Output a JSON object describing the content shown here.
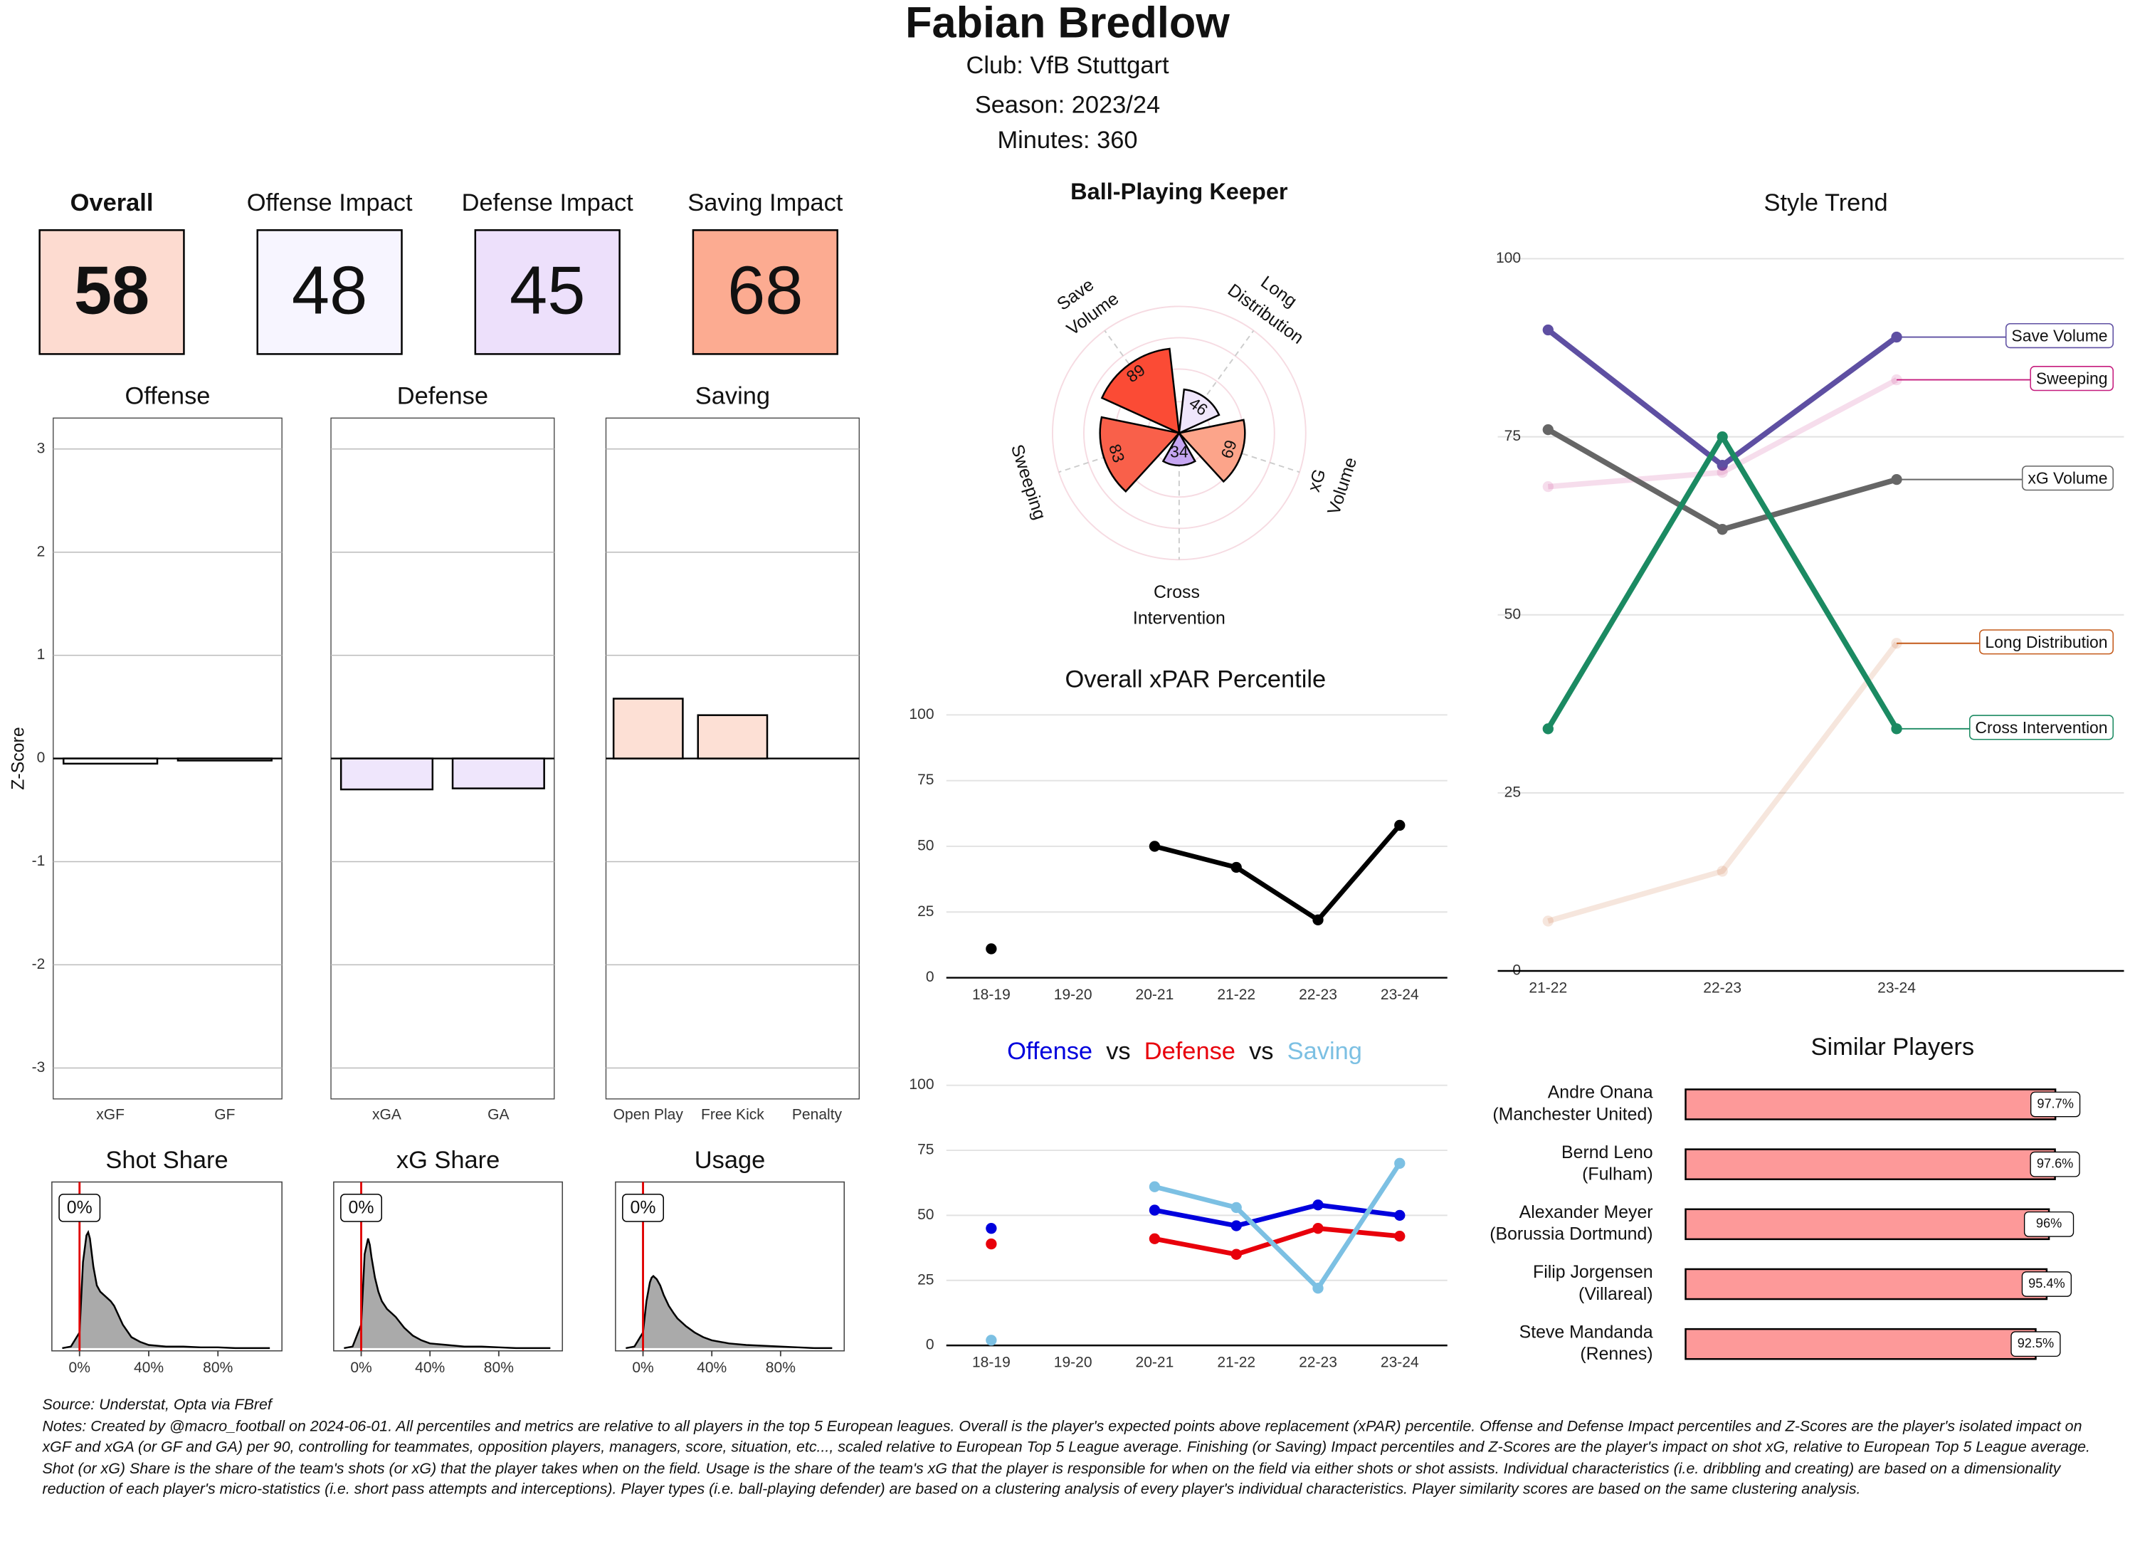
{
  "header": {
    "title": "Fabian Bredlow",
    "club": "Club:  VfB Stuttgart",
    "season": "Season:  2023/24",
    "minutes": "Minutes:  360"
  },
  "scores": [
    {
      "label": "Overall",
      "value": 58,
      "color": "#fddbd0"
    },
    {
      "label": "Offense Impact",
      "value": 48,
      "color": "#f7f5ff"
    },
    {
      "label": "Defense Impact",
      "value": 45,
      "color": "#ede0fb"
    },
    {
      "label": "Saving Impact",
      "value": 68,
      "color": "#fcab91"
    }
  ],
  "chart_data": [
    {
      "type": "faceted_bar",
      "ylabel": "Z-Score",
      "ylim": [
        -3.3,
        3.3
      ],
      "yticks": [
        -3,
        -2,
        -1,
        0,
        1,
        2,
        3
      ],
      "grid": true,
      "facets": [
        {
          "title": "Offense",
          "categories": [
            "xGF",
            "GF"
          ],
          "values": [
            -0.05,
            -0.02
          ],
          "color": "#ffffff"
        },
        {
          "title": "Defense",
          "categories": [
            "xGA",
            "GA"
          ],
          "values": [
            -0.3,
            -0.29
          ],
          "color": "#efe6fc"
        },
        {
          "title": "Saving",
          "categories": [
            "Open Play",
            "Free Kick",
            "Penalty"
          ],
          "values": [
            0.58,
            0.42,
            0
          ],
          "color": "#fde0d5"
        }
      ]
    },
    {
      "type": "density",
      "xlim": [
        -16,
        117
      ],
      "ylim": [
        0,
        1
      ],
      "fill": "#aaaaaa",
      "marker_color": "#e00000",
      "xticks": [
        {
          "value": 0,
          "label": "0%"
        },
        {
          "value": 40,
          "label": "40%"
        },
        {
          "value": 80,
          "label": "80%"
        }
      ],
      "panels": [
        {
          "title": "Shot Share",
          "marker": {
            "value": 0,
            "label": "0%"
          },
          "x": [
            -10,
            -5,
            0,
            2,
            4,
            5,
            6,
            8,
            10,
            12,
            15,
            18,
            20,
            25,
            30,
            35,
            40,
            50,
            60,
            70,
            80,
            90,
            100,
            110
          ],
          "values": [
            0,
            0.01,
            0.1,
            0.55,
            0.72,
            0.74,
            0.7,
            0.52,
            0.4,
            0.36,
            0.33,
            0.3,
            0.27,
            0.15,
            0.07,
            0.04,
            0.02,
            0.01,
            0.01,
            0.005,
            0.005,
            0,
            0,
            0
          ]
        },
        {
          "title": "xG Share",
          "marker": {
            "value": 0,
            "label": "0%"
          },
          "x": [
            -10,
            -5,
            0,
            2,
            4,
            5,
            6,
            8,
            10,
            12,
            15,
            18,
            20,
            25,
            30,
            35,
            40,
            50,
            60,
            70,
            80,
            90,
            100,
            110
          ],
          "values": [
            0,
            0.01,
            0.15,
            0.6,
            0.7,
            0.66,
            0.58,
            0.45,
            0.36,
            0.3,
            0.25,
            0.22,
            0.2,
            0.13,
            0.08,
            0.05,
            0.03,
            0.02,
            0.01,
            0.01,
            0.005,
            0,
            0,
            0
          ]
        },
        {
          "title": "Usage",
          "marker": {
            "value": 0,
            "label": "0%"
          },
          "x": [
            -10,
            -5,
            0,
            2,
            4,
            5,
            6,
            8,
            10,
            12,
            15,
            18,
            20,
            25,
            30,
            35,
            40,
            50,
            60,
            70,
            80,
            90,
            100,
            110
          ],
          "values": [
            0,
            0.01,
            0.1,
            0.3,
            0.42,
            0.45,
            0.46,
            0.44,
            0.4,
            0.34,
            0.27,
            0.22,
            0.19,
            0.14,
            0.1,
            0.07,
            0.05,
            0.03,
            0.02,
            0.015,
            0.01,
            0.005,
            0,
            0
          ]
        }
      ]
    },
    {
      "type": "polar",
      "title": "Ball-Playing Keeper",
      "ylim": [
        0,
        100
      ],
      "categories": [
        "Save Volume",
        "Long Distribution",
        "xG Volume",
        "Cross Intervention",
        "Sweeping"
      ],
      "values": [
        89,
        46,
        69,
        34,
        83
      ],
      "colors": [
        "#fb4b35",
        "#efe6fb",
        "#fca48a",
        "#c6a6f2",
        "#f9604a"
      ]
    },
    {
      "type": "line",
      "title": "Overall xPAR Percentile",
      "categories": [
        "18-19",
        "19-20",
        "20-21",
        "21-22",
        "22-23",
        "23-24"
      ],
      "values": [
        11,
        null,
        50,
        42,
        22,
        58
      ],
      "color": "#000000",
      "ylim": [
        0,
        100
      ],
      "yticks": [
        0,
        25,
        50,
        75,
        100
      ],
      "grid": true
    },
    {
      "type": "line",
      "title_separator": "vs",
      "categories": [
        "18-19",
        "19-20",
        "20-21",
        "21-22",
        "22-23",
        "23-24"
      ],
      "ylim": [
        0,
        100
      ],
      "yticks": [
        0,
        25,
        50,
        75,
        100
      ],
      "grid": true,
      "series": [
        {
          "name": "Offense",
          "color": "#0000dd",
          "values": [
            45,
            null,
            52,
            46,
            54,
            50
          ]
        },
        {
          "name": "Defense",
          "color": "#e8000b",
          "values": [
            39,
            null,
            41,
            35,
            45,
            42
          ]
        },
        {
          "name": "Saving",
          "color": "#7cc0e3",
          "values": [
            2,
            null,
            61,
            53,
            22,
            70
          ]
        }
      ]
    },
    {
      "type": "line",
      "title": "Style Trend",
      "categories": [
        "21-22",
        "22-23",
        "23-24"
      ],
      "legend": "end",
      "ylim": [
        0,
        100
      ],
      "yticks": [
        0,
        25,
        50,
        75,
        100
      ],
      "grid": true,
      "series": [
        {
          "name": "Save Volume",
          "color": "#5e4fa2",
          "opacity": 1,
          "values": [
            90,
            71,
            89
          ]
        },
        {
          "name": "Sweeping",
          "color": "#c51b7d",
          "opacity": 0.15,
          "values": [
            68,
            70,
            83
          ]
        },
        {
          "name": "xG Volume",
          "color": "#666666",
          "opacity": 1,
          "values": [
            76,
            62,
            69
          ]
        },
        {
          "name": "Long Distribution",
          "color": "#c45a1a",
          "opacity": 0.15,
          "values": [
            7,
            14,
            46
          ]
        },
        {
          "name": "Cross Intervention",
          "color": "#1b8a62",
          "opacity": 1,
          "values": [
            34,
            75,
            34
          ]
        }
      ]
    },
    {
      "type": "barh",
      "title": "Similar Players",
      "xlim": [
        0,
        100
      ],
      "color": "#fd9999",
      "categories": [
        "Andre Onana",
        "Bernd Leno",
        "Alexander Meyer",
        "Filip Jorgensen",
        "Steve Mandanda"
      ],
      "subcategories": [
        "(Manchester United)",
        "(Fulham)",
        "(Borussia Dortmund)",
        "(Villareal)",
        "(Rennes)"
      ],
      "values": [
        97.7,
        97.6,
        96,
        95.4,
        92.5
      ],
      "value_labels": [
        "97.7%",
        "97.6%",
        "96%",
        "95.4%",
        "92.5%"
      ]
    }
  ],
  "footer": {
    "source": "Source: Understat, Opta via FBref",
    "notes": "Notes: Created by @macro_football on 2024-06-01. All percentiles and metrics are relative to all players in the top 5 European leagues. Overall is the player's expected points above replacement (xPAR) percentile. Offense and Defense Impact percentiles and Z-Scores are the player's isolated impact on xGF and xGA (or GF and GA) per 90, controlling for teammates, opposition players, managers, score, situation, etc..., scaled relative to European Top 5 League average. Finishing (or Saving) Impact percentiles and Z-Scores are the player's impact on shot xG, relative to European Top 5 League average. Shot (or xG) Share is the share of the team's shots (or xG) that the player takes when on the field. Usage is the share of the team's xG that the player is responsible for when on the field via either shots or shot assists. Individual characteristics (i.e. dribbling and creating) are based on a dimensionality reduction of each player's micro-statistics (i.e. short pass attempts and interceptions). Player types (i.e. ball-playing defender) are based on a clustering analysis of every player's individual characteristics. Player similarity scores are based on the same clustering analysis."
  }
}
